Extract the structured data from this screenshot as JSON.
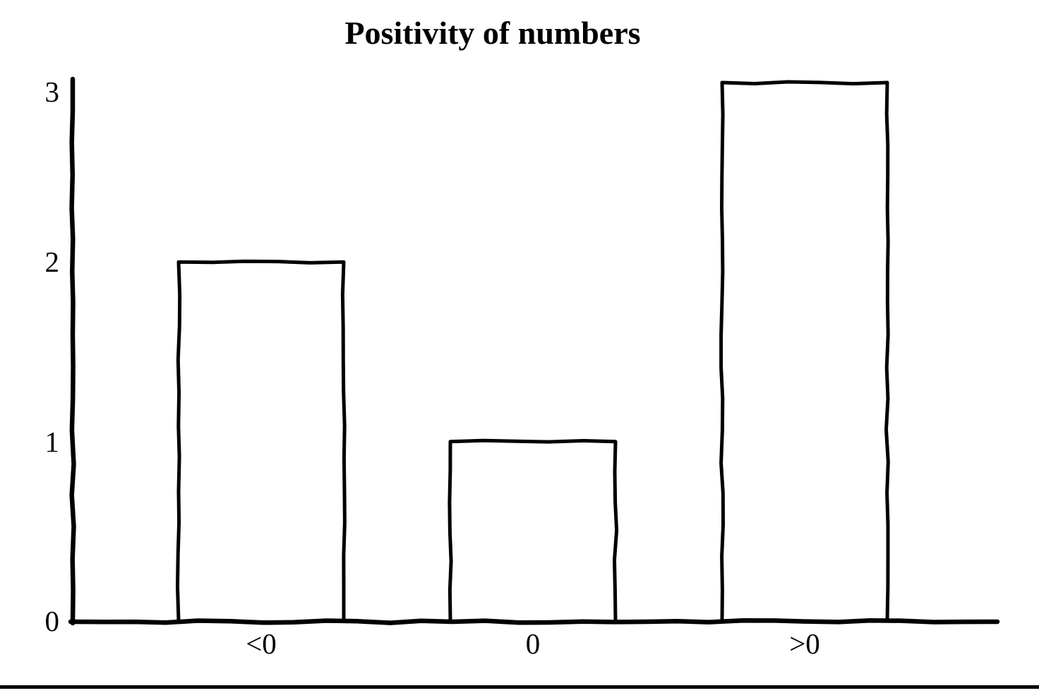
{
  "chart_data": {
    "type": "bar",
    "title": "Positivity of numbers",
    "categories": [
      "<0",
      "0",
      ">0"
    ],
    "values": [
      2,
      1,
      3
    ],
    "y_ticks": [
      0,
      1,
      2,
      3
    ],
    "ylim": [
      0,
      3
    ],
    "xlabel": "",
    "ylabel": "",
    "grid": false,
    "legend_position": "none",
    "style": "hand-drawn-sketch",
    "stroke_color": "#000000",
    "bar_fill": "#ffffff",
    "background_color": "#ffffff"
  }
}
